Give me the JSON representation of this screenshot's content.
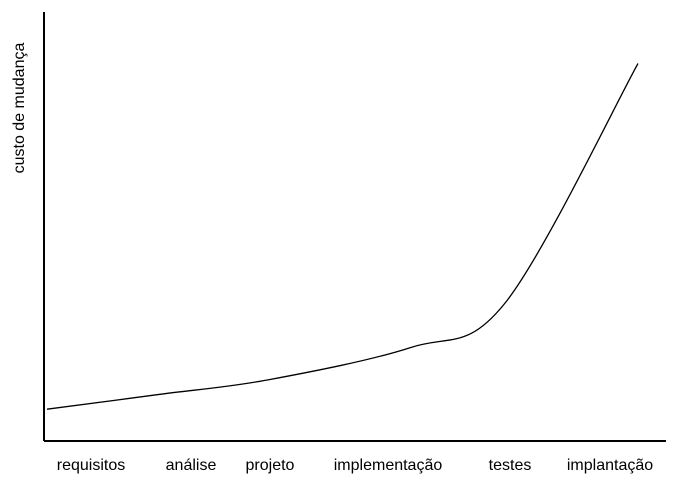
{
  "chart_data": {
    "type": "line",
    "title": "",
    "xlabel": "",
    "ylabel": "custo de mudança",
    "categories": [
      "requisitos",
      "análise",
      "projeto",
      "implementação",
      "testes",
      "implantação"
    ],
    "grid": false,
    "legend": "none",
    "line_color": "#000000",
    "series": [
      {
        "values": [
          1.5,
          2.2,
          2.9,
          4.4,
          6.5,
          17.8
        ]
      }
    ],
    "ylim": [
      0,
      19
    ]
  }
}
